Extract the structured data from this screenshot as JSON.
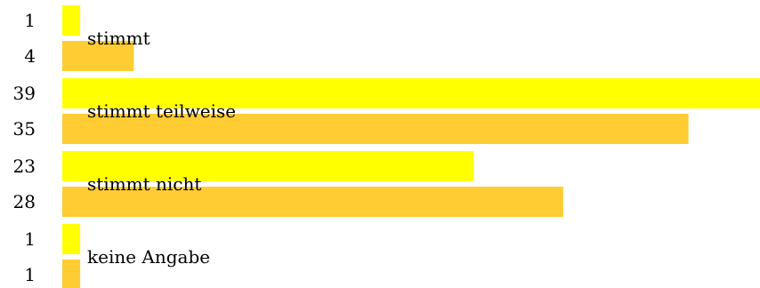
{
  "chart_data": {
    "type": "bar",
    "orientation": "horizontal",
    "categories": [
      "stimmt",
      "stimmt teilweise",
      "stimmt nicht",
      "keine Angabe"
    ],
    "series": [
      {
        "values": [
          1,
          39,
          23,
          1
        ],
        "color": "#ffff00"
      },
      {
        "values": [
          4,
          35,
          28,
          1
        ],
        "color": "#ffcc33"
      }
    ],
    "xlim": [
      0,
      39
    ],
    "grid": false,
    "legend": "none"
  }
}
